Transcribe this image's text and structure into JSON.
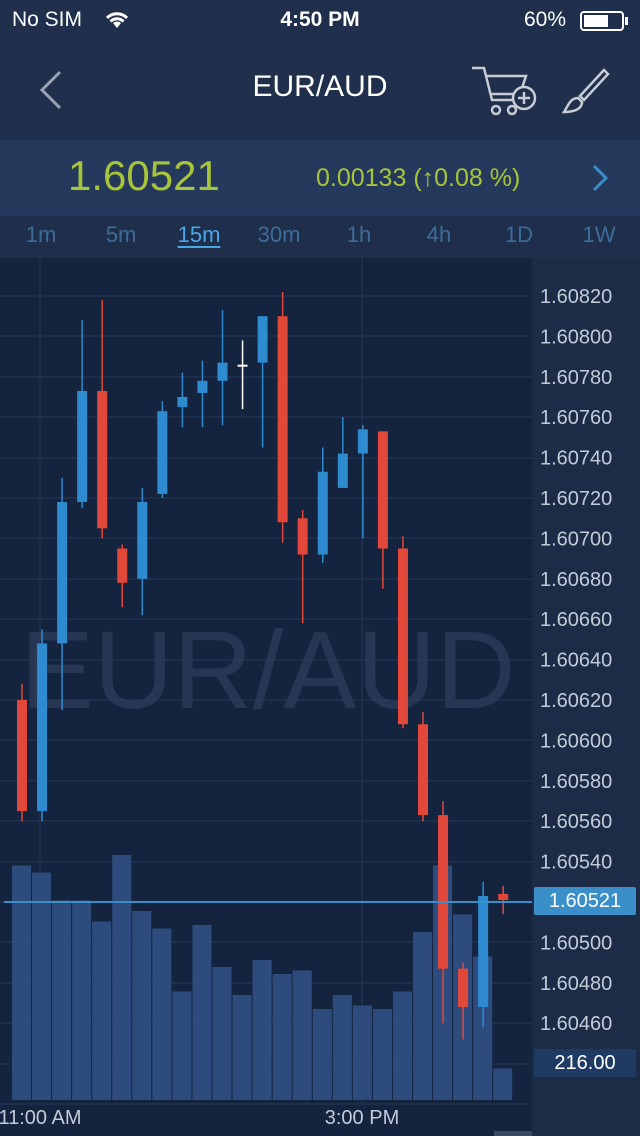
{
  "status": {
    "carrier": "No SIM",
    "time": "4:50 PM",
    "battery": "60%"
  },
  "nav": {
    "title": "EUR/AUD",
    "back_icon": "chevron-left-icon",
    "cart_icon": "cart-add-icon",
    "brush_icon": "brush-icon"
  },
  "quote": {
    "price": "1.60521",
    "change": "0.00133 (↑0.08 %)",
    "more_icon": "chevron-right-icon"
  },
  "timeframes": [
    "1m",
    "5m",
    "15m",
    "30m",
    "1h",
    "4h",
    "1D",
    "1W"
  ],
  "active_timeframe": "15m",
  "chart_data": {
    "type": "candlestick",
    "watermark": "EUR/AUD",
    "y_ticks": [
      "1.60820",
      "1.60800",
      "1.60780",
      "1.60760",
      "1.60740",
      "1.60720",
      "1.60700",
      "1.60680",
      "1.60660",
      "1.60640",
      "1.60620",
      "1.60600",
      "1.60580",
      "1.60560",
      "1.60540",
      "1.60500",
      "1.60480",
      "1.60460"
    ],
    "ylim": [
      1.6044,
      1.6084
    ],
    "x_ticks": [
      "11:00 AM",
      "3:00 PM"
    ],
    "current_price": "1.60521",
    "current_volume": "216.00",
    "candles": [
      {
        "o": 1.6062,
        "h": 1.60628,
        "l": 1.6056,
        "c": 1.60565,
        "v": 0.67
      },
      {
        "o": 1.60565,
        "h": 1.60655,
        "l": 1.6056,
        "c": 1.60648,
        "v": 0.65
      },
      {
        "o": 1.60648,
        "h": 1.6073,
        "l": 1.60615,
        "c": 1.60718,
        "v": 0.57
      },
      {
        "o": 1.60718,
        "h": 1.60808,
        "l": 1.60715,
        "c": 1.60773,
        "v": 0.57
      },
      {
        "o": 1.60773,
        "h": 1.60818,
        "l": 1.607,
        "c": 1.60705,
        "v": 0.51
      },
      {
        "o": 1.60695,
        "h": 1.60697,
        "l": 1.60666,
        "c": 1.60678,
        "v": 0.7
      },
      {
        "o": 1.6068,
        "h": 1.60725,
        "l": 1.60662,
        "c": 1.60718,
        "v": 0.54
      },
      {
        "o": 1.60722,
        "h": 1.60768,
        "l": 1.6072,
        "c": 1.60763,
        "v": 0.49
      },
      {
        "o": 1.60765,
        "h": 1.60782,
        "l": 1.60755,
        "c": 1.6077,
        "v": 0.31
      },
      {
        "o": 1.60772,
        "h": 1.60788,
        "l": 1.60755,
        "c": 1.60778,
        "v": 0.5
      },
      {
        "o": 1.60778,
        "h": 1.60813,
        "l": 1.60756,
        "c": 1.60787,
        "v": 0.38
      },
      {
        "o": 1.60786,
        "h": 1.60798,
        "l": 1.60764,
        "c": 1.60786,
        "v": 0.3
      },
      {
        "o": 1.60787,
        "h": 1.6081,
        "l": 1.60745,
        "c": 1.6081,
        "v": 0.4
      },
      {
        "o": 1.6081,
        "h": 1.60822,
        "l": 1.60698,
        "c": 1.60708,
        "v": 0.36
      },
      {
        "o": 1.6071,
        "h": 1.60714,
        "l": 1.60658,
        "c": 1.60692,
        "v": 0.37
      },
      {
        "o": 1.60692,
        "h": 1.60745,
        "l": 1.60688,
        "c": 1.60733,
        "v": 0.26
      },
      {
        "o": 1.60725,
        "h": 1.6076,
        "l": 1.60725,
        "c": 1.60742,
        "v": 0.3
      },
      {
        "o": 1.60742,
        "h": 1.60756,
        "l": 1.607,
        "c": 1.60754,
        "v": 0.27
      },
      {
        "o": 1.60753,
        "h": 1.60753,
        "l": 1.60675,
        "c": 1.60695,
        "v": 0.26
      },
      {
        "o": 1.60695,
        "h": 1.60701,
        "l": 1.60606,
        "c": 1.60608,
        "v": 0.31
      },
      {
        "o": 1.60608,
        "h": 1.60614,
        "l": 1.6056,
        "c": 1.60563,
        "v": 0.48
      },
      {
        "o": 1.60563,
        "h": 1.6057,
        "l": 1.6046,
        "c": 1.60487,
        "v": 0.67
      },
      {
        "o": 1.60487,
        "h": 1.6049,
        "l": 1.60452,
        "c": 1.60468,
        "v": 0.53
      },
      {
        "o": 1.60468,
        "h": 1.6053,
        "l": 1.60458,
        "c": 1.60523,
        "v": 0.41
      },
      {
        "o": 1.60524,
        "h": 1.60528,
        "l": 1.60514,
        "c": 1.60521,
        "v": 0.09
      }
    ]
  }
}
